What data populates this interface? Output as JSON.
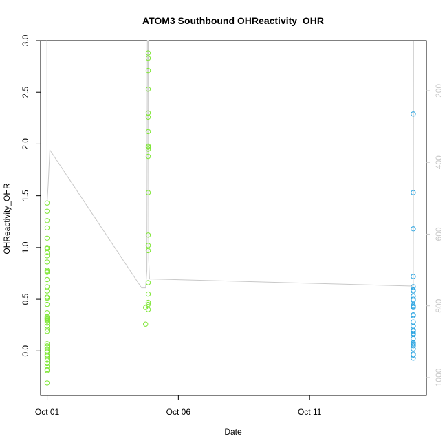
{
  "chart_data": {
    "type": "scatter",
    "title": "ATOM3 Southbound OHReactivity_OHR",
    "xlabel": "Date",
    "ylabel": "OHReactivity_OHR",
    "x_unit": "day of October",
    "xlim": [
      0.75,
      15.45
    ],
    "ylim": [
      -0.43,
      3.0
    ],
    "x_ticks": [
      {
        "value": 1,
        "label": "Oct 01"
      },
      {
        "value": 6,
        "label": "Oct 06"
      },
      {
        "value": 11,
        "label": "Oct 11"
      }
    ],
    "y_ticks": [
      {
        "value": 0.0,
        "label": "0.0"
      },
      {
        "value": 0.5,
        "label": "0.5"
      },
      {
        "value": 1.0,
        "label": "1.0"
      },
      {
        "value": 1.5,
        "label": "1.5"
      },
      {
        "value": 2.0,
        "label": "2.0"
      },
      {
        "value": 2.5,
        "label": "2.5"
      },
      {
        "value": 3.0,
        "label": "3.0"
      }
    ],
    "y2_axis": {
      "reversed": true,
      "ylim": [
        60,
        1050
      ],
      "ticks": [
        {
          "value": 200,
          "label": "200"
        },
        {
          "value": 400,
          "label": "400"
        },
        {
          "value": 600,
          "label": "600"
        },
        {
          "value": 800,
          "label": "800"
        },
        {
          "value": 1000,
          "label": "1000"
        }
      ],
      "color": "#c8c8c8"
    },
    "series": [
      {
        "color": "#7fe636",
        "marker": "open-circle",
        "x": [
          1.0,
          1.0,
          1.0,
          1.0,
          1.0,
          1.0,
          1.0,
          1.0,
          1.0,
          1.0,
          1.0,
          1.0,
          1.0,
          1.0,
          1.0,
          1.0,
          1.0,
          1.0,
          1.0,
          1.0,
          1.0,
          1.0,
          1.0,
          1.0,
          1.0,
          1.0,
          1.0,
          1.0,
          1.0,
          1.0,
          1.0,
          1.0,
          1.0,
          1.0,
          1.0,
          1.0,
          1.0,
          1.0,
          1.0,
          1.0,
          1.0,
          1.0,
          1.0,
          1.0,
          1.0
        ],
        "y": [
          1.43,
          1.35,
          1.26,
          1.19,
          1.09,
          1.0,
          0.99,
          0.95,
          0.92,
          0.86,
          0.78,
          0.77,
          0.76,
          0.69,
          0.62,
          0.58,
          0.52,
          0.51,
          0.45,
          0.37,
          0.33,
          0.32,
          0.31,
          0.31,
          0.3,
          0.29,
          0.27,
          0.24,
          0.21,
          0.19,
          0.07,
          0.05,
          0.04,
          0.02,
          0.0,
          -0.01,
          -0.04,
          -0.05,
          -0.07,
          -0.09,
          -0.12,
          -0.15,
          -0.18,
          -0.19,
          -0.31
        ]
      },
      {
        "color": "#7fe636",
        "marker": "open-circle",
        "x": [
          4.85,
          4.85,
          4.85,
          4.85,
          4.85,
          4.85,
          4.85,
          4.85,
          4.85,
          4.85,
          4.85,
          4.85,
          4.85,
          4.85,
          4.85,
          4.85,
          4.85,
          4.85,
          4.85,
          4.85,
          4.75,
          4.75
        ],
        "y": [
          2.88,
          2.83,
          2.71,
          2.53,
          2.3,
          2.26,
          2.12,
          1.98,
          1.97,
          1.95,
          1.88,
          1.53,
          1.12,
          1.02,
          0.97,
          0.66,
          0.55,
          0.47,
          0.45,
          0.4,
          0.42,
          0.26
        ]
      },
      {
        "color": "#29a3e0",
        "marker": "open-circle",
        "x": [
          14.95,
          14.95,
          14.95,
          14.95,
          14.95,
          14.95,
          14.95,
          14.95,
          14.95,
          14.95,
          14.95,
          14.95,
          14.95,
          14.95,
          14.95,
          14.95,
          14.95,
          14.95,
          14.95,
          14.95,
          14.95,
          14.95,
          14.95,
          14.95,
          14.95,
          14.95,
          14.95,
          14.95,
          14.95,
          14.95
        ],
        "y": [
          2.29,
          1.53,
          1.18,
          0.72,
          0.62,
          0.59,
          0.58,
          0.53,
          0.5,
          0.49,
          0.44,
          0.43,
          0.42,
          0.35,
          0.34,
          0.28,
          0.24,
          0.2,
          0.19,
          0.17,
          0.16,
          0.12,
          0.08,
          0.07,
          0.06,
          0.05,
          0.02,
          -0.04,
          -0.07,
          -0.03
        ]
      }
    ],
    "secondary_line": {
      "color": "#c8c8c8",
      "axis": "y2",
      "x": [
        0.98,
        0.99,
        1.0,
        1.04,
        1.1,
        4.6,
        4.75,
        4.8,
        4.82,
        4.85,
        4.87,
        4.9,
        5.0,
        14.9,
        14.95,
        14.96
      ],
      "y": [
        60,
        60,
        510,
        460,
        365,
        750,
        750,
        700,
        60,
        60,
        670,
        725,
        725,
        745,
        745,
        60
      ]
    }
  }
}
